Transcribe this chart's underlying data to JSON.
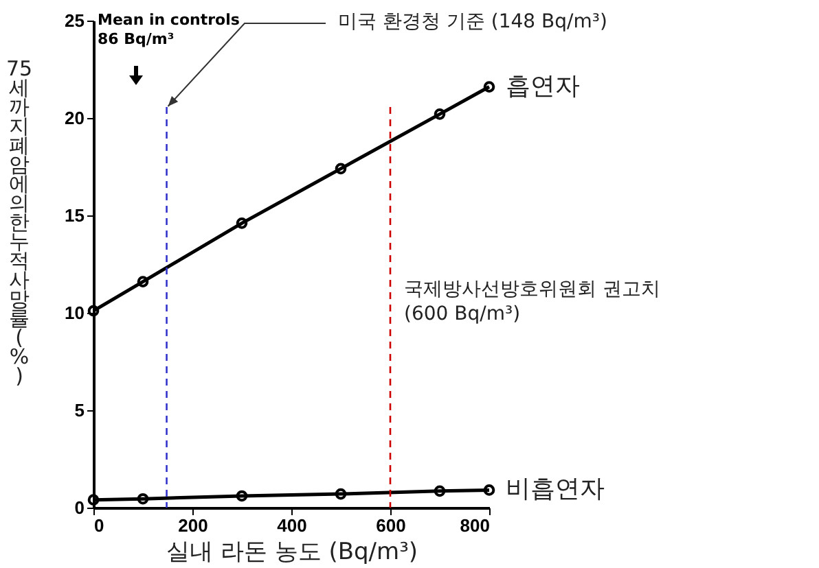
{
  "chart_data": {
    "type": "line",
    "xlabel": "실내 라돈 농도 (Bq/m³)",
    "ylabel": "75세까지 폐암에 의한 누적 사망률(%)",
    "xlim": [
      0,
      800
    ],
    "xticks": [
      0,
      200,
      400,
      600,
      800
    ],
    "ylim": [
      0,
      25
    ],
    "yticks": [
      0,
      5,
      10,
      15,
      20,
      25
    ],
    "grid": false,
    "legend": false,
    "marker": "circle",
    "line_style": "solid",
    "series": [
      {
        "name": "흡연자",
        "color": "#000000",
        "x": [
          0,
          100,
          300,
          500,
          700,
          800
        ],
        "values": [
          10.1,
          11.6,
          14.6,
          17.4,
          20.2,
          21.6
        ]
      },
      {
        "name": "비흡연자",
        "color": "#000000",
        "x": [
          0,
          100,
          300,
          500,
          700,
          800
        ],
        "values": [
          0.4,
          0.45,
          0.6,
          0.7,
          0.85,
          0.9
        ]
      }
    ],
    "ref_lines": [
      {
        "axis": "x",
        "value": 148,
        "label": "미국 환경청 기준 (148 Bq/m³)",
        "color": "#3333cc",
        "line_style": "dashed"
      },
      {
        "axis": "x",
        "value": 600,
        "label": "국제방사선방호위원회 권고치\n(600 Bq/m³)",
        "color": "#cc0000",
        "line_style": "dashed"
      }
    ],
    "annotations": [
      "Mean in controls\n86 Bq/m³"
    ]
  }
}
